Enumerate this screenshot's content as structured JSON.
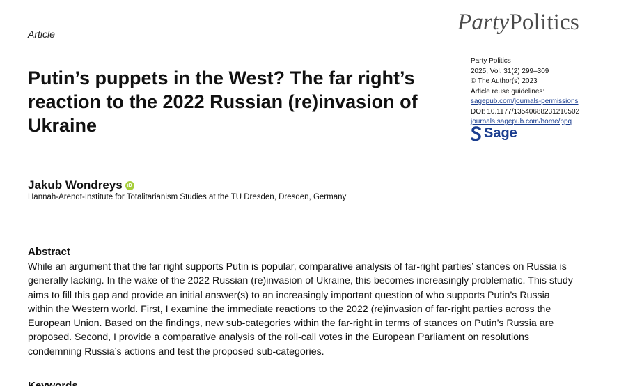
{
  "journal_logo": {
    "part1": "Party",
    "part2": "Politics"
  },
  "article_type": "Article",
  "title_lines": [
    "Putin’s puppets in the West? The far right’s",
    "reaction to the 2022 Russian (re)invasion of",
    "Ukraine"
  ],
  "meta": {
    "journal": "Party Politics",
    "volume": "2025, Vol. 31(2) 299–309",
    "copyright": "© The Author(s) 2023",
    "reuse_label": "Article reuse guidelines:",
    "reuse_link": "sagepub.com/journals-permissions",
    "doi": "DOI: 10.1177/13540688231210502",
    "journal_link": "journals.sagepub.com/home/ppq",
    "publisher": "Sage"
  },
  "author": {
    "name": "Jakub Wondreys",
    "orcid_badge": "iD"
  },
  "affiliation": "Hannah-Arendt-Institute for Totalitarianism Studies at the TU Dresden, Dresden, Germany",
  "abstract": {
    "heading": "Abstract",
    "lines": [
      "While an argument that the far right supports Putin is popular, comparative analysis of far-right parties’ stances on Russia is",
      "generally lacking. In the wake of the 2022 Russian (re)invasion of Ukraine, this becomes increasingly problematic. This study",
      "aims to fill this gap and provide an initial answer(s) to an increasingly important question of who supports Putin’s Russia",
      "within the Western world. First, I examine the immediate reactions to the 2022 (re)invasion of far-right parties across the",
      "European Union. Based on the findings, new sub-categories within the far-right in terms of stances on Putin’s Russia are",
      "proposed. Second, I provide a comparative analysis of the roll-call votes in the European Parliament on resolutions",
      "condemning Russia’s actions and test the proposed sub-categories."
    ]
  },
  "keywords_heading": "Keywords",
  "colors": {
    "link": "#1a3d8f",
    "orcid": "#a6ce39",
    "logo": "#4a4a4a"
  }
}
